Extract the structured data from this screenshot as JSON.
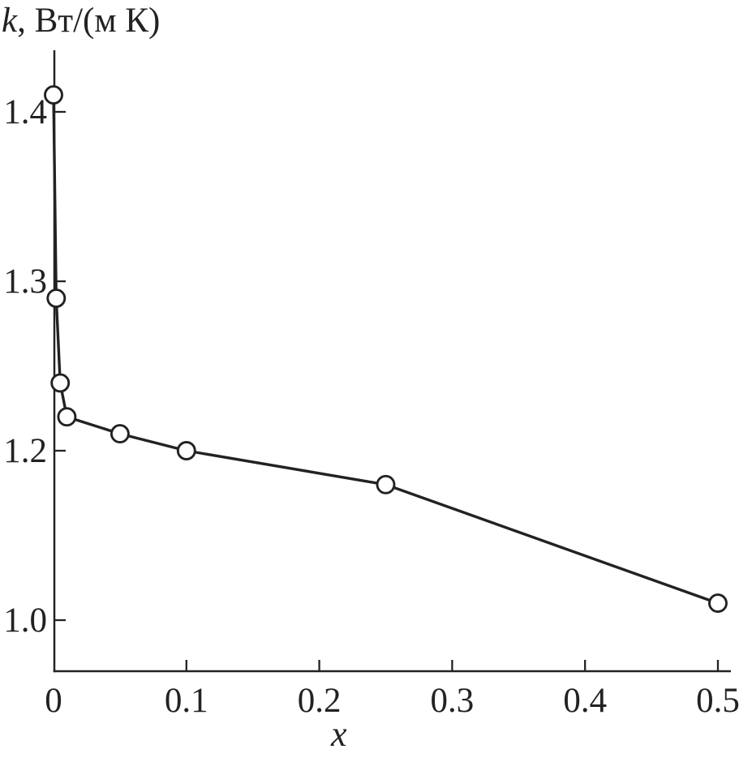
{
  "figure": {
    "y_axis_title": {
      "italic_part": "k",
      "regular_part": ", Вт/(м К)"
    },
    "x_axis_title": "x"
  },
  "chart_data": {
    "type": "line",
    "title": "",
    "xlabel": "x",
    "ylabel": "k, Вт/(м К)",
    "legend": "none",
    "grid": false,
    "x_axis": {
      "range": [
        0,
        0.52
      ],
      "ticks": [
        {
          "value": 0,
          "label": "0",
          "mark": false
        },
        {
          "value": 0.1,
          "label": "0.1",
          "mark": true
        },
        {
          "value": 0.2,
          "label": "0.2",
          "mark": true
        },
        {
          "value": 0.3,
          "label": "0.3",
          "mark": true
        },
        {
          "value": 0.4,
          "label": "0.4",
          "mark": true
        },
        {
          "value": 0.5,
          "label": "0.5",
          "mark": true
        }
      ]
    },
    "y_axis": {
      "ticks": [
        {
          "value": 1.0,
          "label": "1.0"
        },
        {
          "value": 1.2,
          "label": "1.2"
        },
        {
          "value": 1.3,
          "label": "1.3"
        },
        {
          "value": 1.4,
          "label": "1.4"
        }
      ],
      "note": "tick marks are equally spaced in the printed figure even though the 1.0–1.2 value gap is 0.2 while the others are 0.1"
    },
    "series": [
      {
        "marker": "open-circle",
        "points": [
          {
            "x": 0,
            "y": 1.41
          },
          {
            "x": 0.002,
            "y": 1.29
          },
          {
            "x": 0.005,
            "y": 1.24
          },
          {
            "x": 0.01,
            "y": 1.22
          },
          {
            "x": 0.05,
            "y": 1.21
          },
          {
            "x": 0.1,
            "y": 1.2
          },
          {
            "x": 0.25,
            "y": 1.16
          },
          {
            "x": 0.5,
            "y": 1.02
          }
        ]
      }
    ],
    "colors": {
      "ink": "#222222",
      "marker_fill": "#ffffff",
      "background": "#ffffff"
    }
  }
}
